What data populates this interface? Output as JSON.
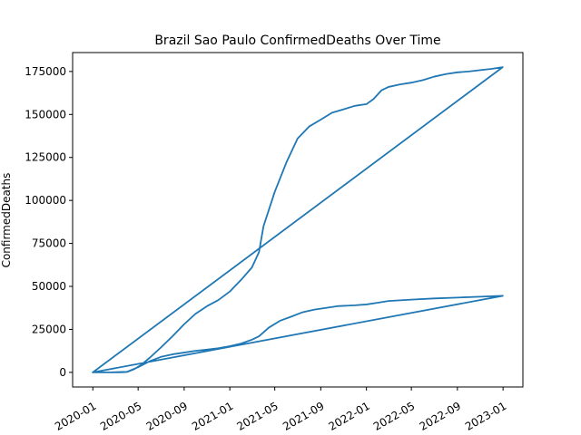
{
  "chart_data": {
    "type": "line",
    "title": "Brazil Sao Paulo ConfirmedDeaths Over Time",
    "xlabel": "",
    "ylabel": "ConfirmedDeaths",
    "x_ticks": [
      "2020-01",
      "2020-05",
      "2020-09",
      "2021-01",
      "2021-05",
      "2021-09",
      "2022-01",
      "2022-05",
      "2022-09",
      "2023-01"
    ],
    "y_ticks": [
      "0",
      "25000",
      "50000",
      "75000",
      "100000",
      "125000",
      "150000",
      "175000"
    ],
    "xlim": [
      "2019-11-08",
      "2023-02-23"
    ],
    "ylim": [
      -8500,
      186000
    ],
    "grid": false,
    "color": "#1f77b4",
    "series": [
      {
        "points": [
          [
            "2020-01-01",
            0
          ],
          [
            "2020-02-15",
            0
          ],
          [
            "2020-03-15",
            0
          ],
          [
            "2020-04-01",
            200
          ],
          [
            "2020-04-20",
            1800
          ],
          [
            "2020-05-10",
            4500
          ],
          [
            "2020-06-01",
            8500
          ],
          [
            "2020-07-01",
            14500
          ],
          [
            "2020-08-01",
            21000
          ],
          [
            "2020-09-01",
            28000
          ],
          [
            "2020-10-01",
            34000
          ],
          [
            "2020-11-01",
            38500
          ],
          [
            "2020-12-01",
            42000
          ],
          [
            "2021-01-01",
            47000
          ],
          [
            "2021-02-01",
            54000
          ],
          [
            "2021-03-01",
            61000
          ],
          [
            "2021-03-20",
            70000
          ],
          [
            "2021-04-01",
            85000
          ],
          [
            "2021-05-01",
            105000
          ],
          [
            "2021-06-01",
            122000
          ],
          [
            "2021-07-01",
            136000
          ],
          [
            "2021-08-01",
            143000
          ],
          [
            "2021-09-01",
            147000
          ],
          [
            "2021-10-01",
            151000
          ],
          [
            "2021-11-01",
            153000
          ],
          [
            "2021-12-01",
            155000
          ],
          [
            "2022-01-01",
            156000
          ],
          [
            "2022-01-20",
            159000
          ],
          [
            "2022-02-10",
            164000
          ],
          [
            "2022-03-01",
            166000
          ],
          [
            "2022-04-01",
            167500
          ],
          [
            "2022-05-01",
            168500
          ],
          [
            "2022-06-01",
            170000
          ],
          [
            "2022-07-01",
            172000
          ],
          [
            "2022-08-01",
            173500
          ],
          [
            "2022-09-01",
            174500
          ],
          [
            "2022-10-01",
            175000
          ],
          [
            "2022-11-01",
            175800
          ],
          [
            "2022-12-01",
            176500
          ],
          [
            "2022-12-31",
            177500
          ],
          [
            "2020-01-01",
            0
          ],
          [
            "2020-02-15",
            0
          ],
          [
            "2020-04-01",
            300
          ],
          [
            "2020-05-01",
            3000
          ],
          [
            "2020-06-01",
            6500
          ],
          [
            "2020-07-01",
            9000
          ],
          [
            "2020-08-01",
            10500
          ],
          [
            "2020-09-01",
            11500
          ],
          [
            "2020-10-01",
            12500
          ],
          [
            "2020-11-01",
            13200
          ],
          [
            "2020-12-01",
            14000
          ],
          [
            "2021-01-01",
            15200
          ],
          [
            "2021-02-01",
            16800
          ],
          [
            "2021-03-01",
            19000
          ],
          [
            "2021-03-20",
            21000
          ],
          [
            "2021-04-15",
            26000
          ],
          [
            "2021-05-15",
            30000
          ],
          [
            "2021-06-15",
            32500
          ],
          [
            "2021-07-15",
            35000
          ],
          [
            "2021-08-15",
            36500
          ],
          [
            "2021-09-15",
            37500
          ],
          [
            "2021-10-15",
            38500
          ],
          [
            "2021-12-01",
            39000
          ],
          [
            "2022-01-01",
            39500
          ],
          [
            "2022-02-01",
            40500
          ],
          [
            "2022-03-01",
            41500
          ],
          [
            "2022-05-01",
            42300
          ],
          [
            "2022-07-01",
            43000
          ],
          [
            "2022-09-01",
            43500
          ],
          [
            "2022-11-01",
            44000
          ],
          [
            "2022-12-31",
            44500
          ],
          [
            "2020-01-01",
            0
          ],
          [
            "2022-12-31",
            44500
          ]
        ]
      }
    ]
  }
}
